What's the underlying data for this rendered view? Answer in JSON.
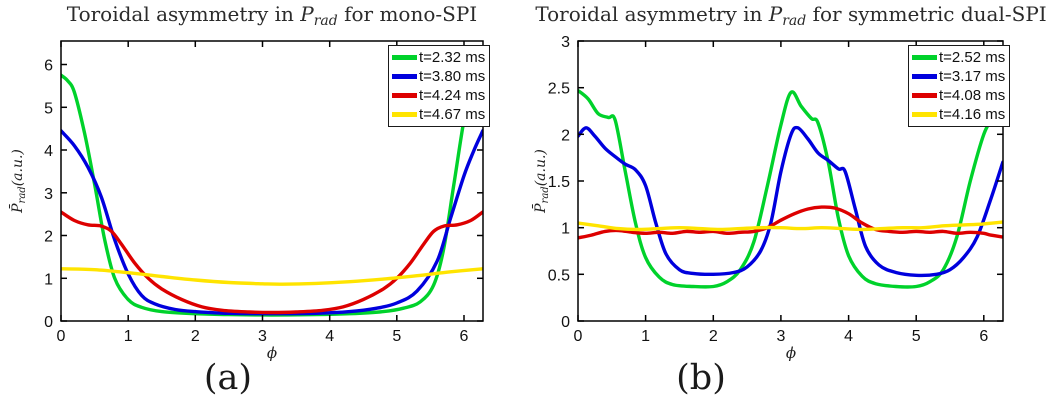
{
  "figure": {
    "captions": [
      "(a)",
      "(b)"
    ],
    "colors": {
      "axis": "#000000",
      "tick_label": "#111111",
      "title": "#2b2b2b"
    }
  },
  "chart_data": [
    {
      "type": "line",
      "title_prefix": "Toroidal asymmetry in ",
      "title_math": "P",
      "title_math_sub": "rad",
      "title_suffix": " for mono-SPI",
      "xlabel": "ϕ",
      "ylabel_base": "P̄",
      "ylabel_sub": "rad",
      "ylabel_units": "(a.u.)",
      "xlim": [
        0,
        6.2832
      ],
      "ylim": [
        0,
        6.55
      ],
      "xticks": [
        0,
        1,
        2,
        3,
        4,
        5,
        6
      ],
      "xtick_labels": [
        "0",
        "1",
        "2",
        "3",
        "4",
        "5",
        "6"
      ],
      "yticks": [
        0,
        1,
        2,
        3,
        4,
        5,
        6
      ],
      "ytick_labels": [
        "0",
        "1",
        "2",
        "3",
        "4",
        "5",
        "6"
      ],
      "grid": false,
      "legend_position": "top-right",
      "series": [
        {
          "label": "t=2.32 ms",
          "color": "#00d22b",
          "points": [
            [
              0,
              5.75
            ],
            [
              0.1,
              5.62
            ],
            [
              0.2,
              5.35
            ],
            [
              0.35,
              4.4
            ],
            [
              0.5,
              3.2
            ],
            [
              0.65,
              1.9
            ],
            [
              0.8,
              1.0
            ],
            [
              1.0,
              0.5
            ],
            [
              1.2,
              0.32
            ],
            [
              1.5,
              0.22
            ],
            [
              2.0,
              0.17
            ],
            [
              2.5,
              0.15
            ],
            [
              3.14,
              0.14
            ],
            [
              3.8,
              0.15
            ],
            [
              4.3,
              0.17
            ],
            [
              4.8,
              0.22
            ],
            [
              5.1,
              0.3
            ],
            [
              5.35,
              0.45
            ],
            [
              5.55,
              0.85
            ],
            [
              5.7,
              1.7
            ],
            [
              5.85,
              3.2
            ],
            [
              6.0,
              4.7
            ],
            [
              6.1,
              5.3
            ],
            [
              6.2,
              5.65
            ],
            [
              6.28,
              5.85
            ]
          ]
        },
        {
          "label": "t=3.80 ms",
          "color": "#0000dd",
          "points": [
            [
              0,
              4.45
            ],
            [
              0.2,
              4.1
            ],
            [
              0.4,
              3.6
            ],
            [
              0.6,
              2.9
            ],
            [
              0.8,
              1.9
            ],
            [
              1.0,
              1.1
            ],
            [
              1.2,
              0.6
            ],
            [
              1.4,
              0.4
            ],
            [
              1.7,
              0.27
            ],
            [
              2.0,
              0.22
            ],
            [
              2.5,
              0.18
            ],
            [
              3.14,
              0.17
            ],
            [
              3.8,
              0.18
            ],
            [
              4.3,
              0.22
            ],
            [
              4.7,
              0.3
            ],
            [
              5.0,
              0.42
            ],
            [
              5.3,
              0.7
            ],
            [
              5.6,
              1.4
            ],
            [
              5.8,
              2.4
            ],
            [
              6.0,
              3.4
            ],
            [
              6.15,
              4.0
            ],
            [
              6.28,
              4.45
            ]
          ]
        },
        {
          "label": "t=4.24 ms",
          "color": "#dd0000",
          "points": [
            [
              0,
              2.55
            ],
            [
              0.2,
              2.35
            ],
            [
              0.4,
              2.25
            ],
            [
              0.6,
              2.22
            ],
            [
              0.75,
              2.1
            ],
            [
              0.9,
              1.8
            ],
            [
              1.1,
              1.35
            ],
            [
              1.3,
              1.0
            ],
            [
              1.5,
              0.75
            ],
            [
              1.8,
              0.5
            ],
            [
              2.1,
              0.33
            ],
            [
              2.4,
              0.25
            ],
            [
              2.8,
              0.21
            ],
            [
              3.14,
              0.2
            ],
            [
              3.5,
              0.21
            ],
            [
              3.9,
              0.25
            ],
            [
              4.2,
              0.33
            ],
            [
              4.5,
              0.5
            ],
            [
              4.8,
              0.75
            ],
            [
              5.0,
              1.0
            ],
            [
              5.2,
              1.35
            ],
            [
              5.4,
              1.8
            ],
            [
              5.55,
              2.1
            ],
            [
              5.7,
              2.22
            ],
            [
              5.9,
              2.25
            ],
            [
              6.1,
              2.35
            ],
            [
              6.28,
              2.55
            ]
          ]
        },
        {
          "label": "t=4.67 ms",
          "color": "#ffe400",
          "points": [
            [
              0,
              1.22
            ],
            [
              0.5,
              1.2
            ],
            [
              1.0,
              1.13
            ],
            [
              1.5,
              1.04
            ],
            [
              2.0,
              0.96
            ],
            [
              2.5,
              0.9
            ],
            [
              3.0,
              0.87
            ],
            [
              3.3,
              0.86
            ],
            [
              3.8,
              0.88
            ],
            [
              4.3,
              0.92
            ],
            [
              4.8,
              0.98
            ],
            [
              5.3,
              1.06
            ],
            [
              5.8,
              1.15
            ],
            [
              6.28,
              1.22
            ]
          ]
        }
      ]
    },
    {
      "type": "line",
      "title_prefix": "Toroidal asymmetry in ",
      "title_math": "P",
      "title_math_sub": "rad",
      "title_suffix": " for symmetric dual-SPI",
      "xlabel": "ϕ",
      "ylabel_base": "P̄",
      "ylabel_sub": "rad",
      "ylabel_units": "(a.u.)",
      "xlim": [
        0,
        6.2832
      ],
      "ylim": [
        0,
        3
      ],
      "xticks": [
        0,
        1,
        2,
        3,
        4,
        5,
        6
      ],
      "xtick_labels": [
        "0",
        "1",
        "2",
        "3",
        "4",
        "5",
        "6"
      ],
      "yticks": [
        0,
        0.5,
        1,
        1.5,
        2,
        2.5,
        3
      ],
      "ytick_labels": [
        "0",
        "0.5",
        "1",
        "1.5",
        "2",
        "2.5",
        "3"
      ],
      "grid": false,
      "legend_position": "top-right",
      "series": [
        {
          "label": "t=2.52 ms",
          "color": "#00d22b",
          "points": [
            [
              0,
              2.47
            ],
            [
              0.15,
              2.38
            ],
            [
              0.3,
              2.22
            ],
            [
              0.45,
              2.18
            ],
            [
              0.55,
              2.15
            ],
            [
              0.7,
              1.6
            ],
            [
              0.85,
              1.05
            ],
            [
              1.0,
              0.68
            ],
            [
              1.2,
              0.47
            ],
            [
              1.4,
              0.39
            ],
            [
              1.7,
              0.37
            ],
            [
              2.0,
              0.37
            ],
            [
              2.2,
              0.42
            ],
            [
              2.4,
              0.55
            ],
            [
              2.6,
              0.85
            ],
            [
              2.8,
              1.45
            ],
            [
              3.0,
              2.1
            ],
            [
              3.15,
              2.45
            ],
            [
              3.3,
              2.3
            ],
            [
              3.45,
              2.17
            ],
            [
              3.55,
              2.12
            ],
            [
              3.7,
              1.7
            ],
            [
              3.85,
              1.1
            ],
            [
              4.0,
              0.7
            ],
            [
              4.2,
              0.48
            ],
            [
              4.4,
              0.4
            ],
            [
              4.7,
              0.37
            ],
            [
              5.0,
              0.37
            ],
            [
              5.2,
              0.42
            ],
            [
              5.4,
              0.55
            ],
            [
              5.6,
              0.9
            ],
            [
              5.8,
              1.5
            ],
            [
              6.0,
              2.0
            ],
            [
              6.15,
              2.2
            ],
            [
              6.28,
              2.32
            ]
          ]
        },
        {
          "label": "t=3.17 ms",
          "color": "#0000dd",
          "points": [
            [
              0,
              1.98
            ],
            [
              0.12,
              2.07
            ],
            [
              0.25,
              1.98
            ],
            [
              0.4,
              1.85
            ],
            [
              0.55,
              1.76
            ],
            [
              0.7,
              1.68
            ],
            [
              0.85,
              1.62
            ],
            [
              1.0,
              1.45
            ],
            [
              1.15,
              1.05
            ],
            [
              1.3,
              0.72
            ],
            [
              1.5,
              0.55
            ],
            [
              1.7,
              0.51
            ],
            [
              2.0,
              0.5
            ],
            [
              2.3,
              0.52
            ],
            [
              2.5,
              0.58
            ],
            [
              2.7,
              0.75
            ],
            [
              2.85,
              1.05
            ],
            [
              3.0,
              1.6
            ],
            [
              3.15,
              2.0
            ],
            [
              3.25,
              2.07
            ],
            [
              3.4,
              1.95
            ],
            [
              3.55,
              1.8
            ],
            [
              3.7,
              1.72
            ],
            [
              3.85,
              1.63
            ],
            [
              3.95,
              1.6
            ],
            [
              4.1,
              1.2
            ],
            [
              4.25,
              0.8
            ],
            [
              4.45,
              0.6
            ],
            [
              4.7,
              0.52
            ],
            [
              5.0,
              0.49
            ],
            [
              5.3,
              0.5
            ],
            [
              5.5,
              0.55
            ],
            [
              5.7,
              0.68
            ],
            [
              5.9,
              0.9
            ],
            [
              6.1,
              1.3
            ],
            [
              6.28,
              1.7
            ]
          ]
        },
        {
          "label": "t=4.08 ms",
          "color": "#dd0000",
          "points": [
            [
              0,
              0.89
            ],
            [
              0.2,
              0.92
            ],
            [
              0.4,
              0.96
            ],
            [
              0.6,
              0.97
            ],
            [
              0.8,
              0.95
            ],
            [
              1.0,
              0.94
            ],
            [
              1.2,
              0.95
            ],
            [
              1.4,
              0.94
            ],
            [
              1.6,
              0.96
            ],
            [
              1.8,
              0.95
            ],
            [
              2.0,
              0.96
            ],
            [
              2.2,
              0.94
            ],
            [
              2.4,
              0.95
            ],
            [
              2.6,
              0.96
            ],
            [
              2.8,
              1.0
            ],
            [
              3.0,
              1.08
            ],
            [
              3.2,
              1.15
            ],
            [
              3.4,
              1.2
            ],
            [
              3.6,
              1.22
            ],
            [
              3.8,
              1.21
            ],
            [
              4.0,
              1.15
            ],
            [
              4.2,
              1.05
            ],
            [
              4.4,
              0.98
            ],
            [
              4.6,
              0.96
            ],
            [
              4.8,
              0.95
            ],
            [
              5.0,
              0.96
            ],
            [
              5.2,
              0.95
            ],
            [
              5.4,
              0.96
            ],
            [
              5.6,
              0.94
            ],
            [
              5.8,
              0.95
            ],
            [
              6.0,
              0.94
            ],
            [
              6.1,
              0.92
            ],
            [
              6.28,
              0.9
            ]
          ]
        },
        {
          "label": "t=4.16 ms",
          "color": "#ffe400",
          "points": [
            [
              0,
              1.05
            ],
            [
              0.3,
              1.02
            ],
            [
              0.6,
              0.99
            ],
            [
              0.9,
              0.98
            ],
            [
              1.2,
              0.99
            ],
            [
              1.5,
              1.0
            ],
            [
              1.8,
              0.99
            ],
            [
              2.1,
              0.98
            ],
            [
              2.4,
              0.99
            ],
            [
              2.7,
              1.0
            ],
            [
              3.0,
              1.0
            ],
            [
              3.3,
              0.99
            ],
            [
              3.6,
              1.0
            ],
            [
              3.9,
              0.99
            ],
            [
              4.2,
              0.98
            ],
            [
              4.5,
              0.99
            ],
            [
              4.8,
              1.0
            ],
            [
              5.1,
              1.0
            ],
            [
              5.4,
              1.02
            ],
            [
              5.7,
              1.03
            ],
            [
              6.0,
              1.04
            ],
            [
              6.28,
              1.06
            ]
          ]
        }
      ]
    }
  ]
}
